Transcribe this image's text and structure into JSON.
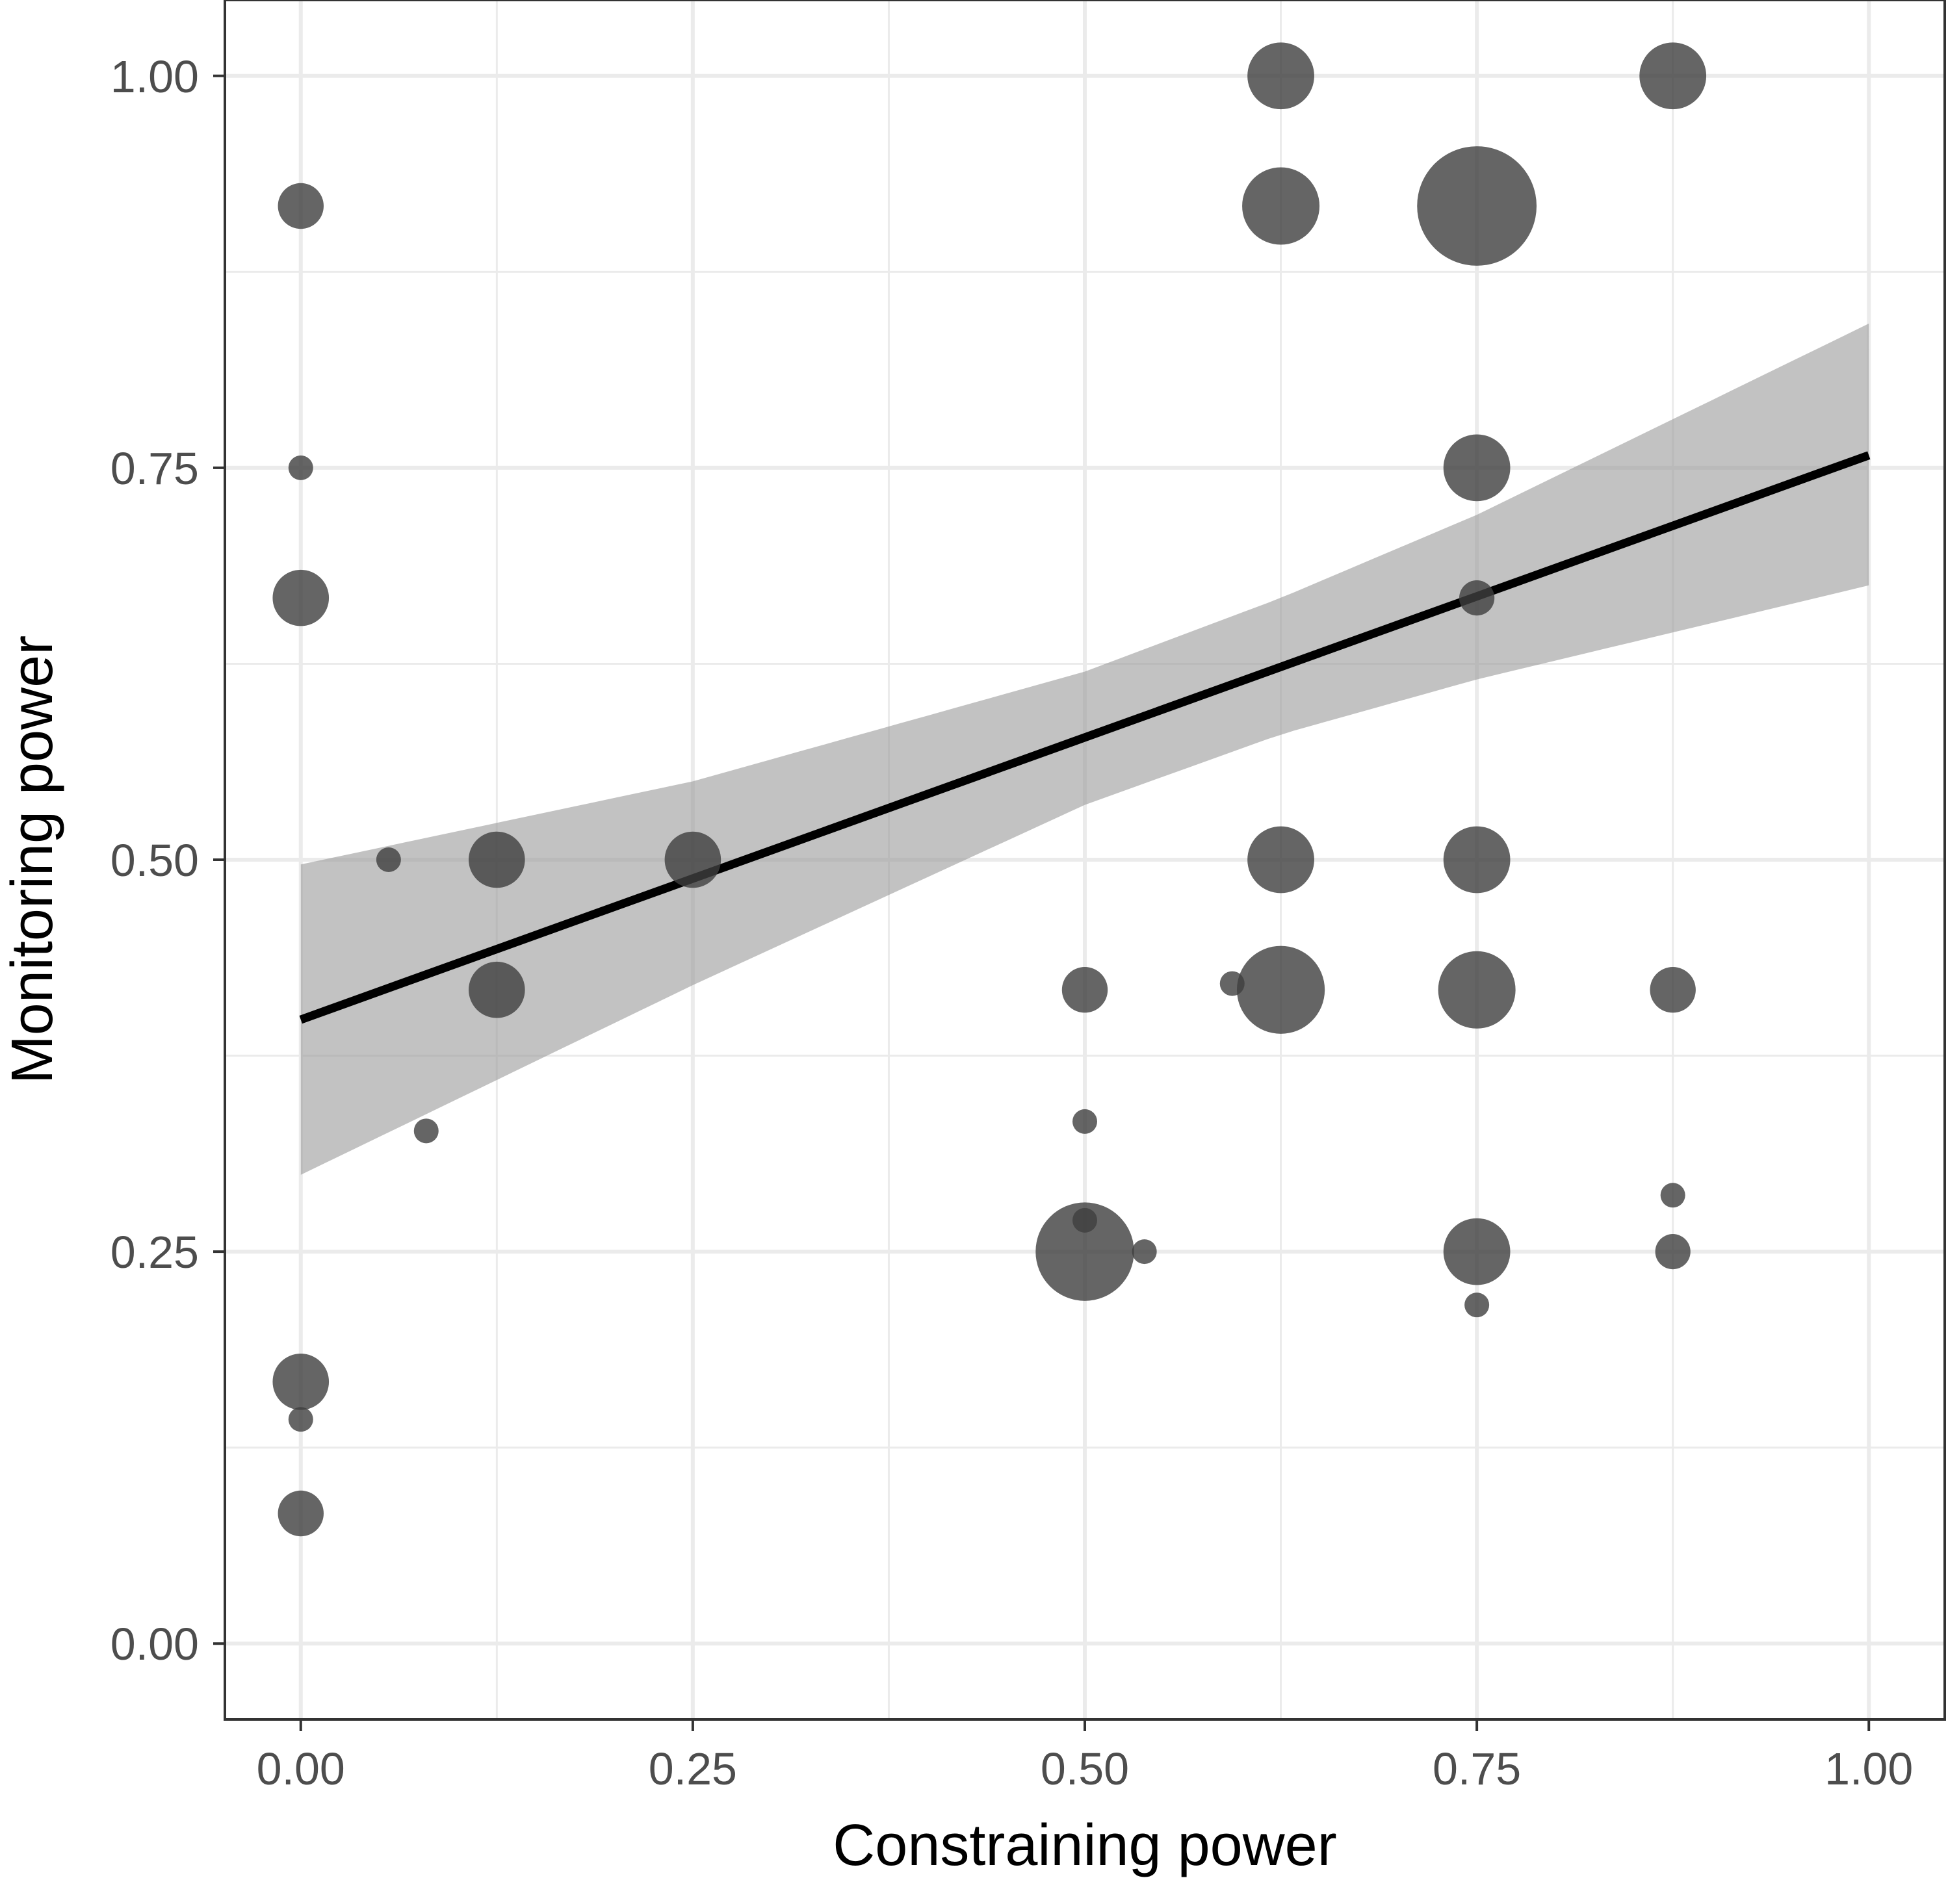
{
  "chart_data": {
    "type": "scatter",
    "title": "",
    "xlabel": "Constraining power",
    "ylabel": "Monitoring power",
    "xlim": [
      -0.0484,
      1.0484
    ],
    "ylim": [
      -0.0484,
      1.0484
    ],
    "grid": true,
    "major_ticks": [
      0,
      0.25,
      0.5,
      0.75,
      1.0
    ],
    "minor_ticks": [
      0.125,
      0.375,
      0.625,
      0.875
    ],
    "x_tick_labels": [
      "0.00",
      "0.25",
      "0.50",
      "0.75",
      "1.00"
    ],
    "y_tick_labels": [
      "0.00",
      "0.25",
      "0.50",
      "0.75",
      "1.00"
    ],
    "point_color": "#3f3f3f",
    "point_opacity": 0.8,
    "fit_line_color": "#000000",
    "confidence_band_color": "#999999",
    "points": [
      {
        "x": 0.0,
        "y": 0.917,
        "size": 3
      },
      {
        "x": 0.0,
        "y": 0.75,
        "size": 1
      },
      {
        "x": 0.0,
        "y": 0.667,
        "size": 4
      },
      {
        "x": 0.0,
        "y": 0.167,
        "size": 4
      },
      {
        "x": 0.0,
        "y": 0.143,
        "size": 1
      },
      {
        "x": 0.0,
        "y": 0.083,
        "size": 3
      },
      {
        "x": 0.056,
        "y": 0.5,
        "size": 1
      },
      {
        "x": 0.08,
        "y": 0.327,
        "size": 1
      },
      {
        "x": 0.125,
        "y": 0.5,
        "size": 4
      },
      {
        "x": 0.125,
        "y": 0.417,
        "size": 4
      },
      {
        "x": 0.25,
        "y": 0.5,
        "size": 4
      },
      {
        "x": 0.5,
        "y": 0.417,
        "size": 3
      },
      {
        "x": 0.5,
        "y": 0.333,
        "size": 1
      },
      {
        "x": 0.5,
        "y": 0.25,
        "size": 8
      },
      {
        "x": 0.5,
        "y": 0.27,
        "size": 1
      },
      {
        "x": 0.538,
        "y": 0.25,
        "size": 1
      },
      {
        "x": 0.594,
        "y": 0.421,
        "size": 1
      },
      {
        "x": 0.625,
        "y": 1.0,
        "size": 5
      },
      {
        "x": 0.625,
        "y": 0.917,
        "size": 6
      },
      {
        "x": 0.625,
        "y": 0.5,
        "size": 5
      },
      {
        "x": 0.625,
        "y": 0.417,
        "size": 7
      },
      {
        "x": 0.75,
        "y": 0.917,
        "size": 10
      },
      {
        "x": 0.75,
        "y": 0.75,
        "size": 5
      },
      {
        "x": 0.75,
        "y": 0.667,
        "size": 2
      },
      {
        "x": 0.75,
        "y": 0.5,
        "size": 5
      },
      {
        "x": 0.75,
        "y": 0.417,
        "size": 6
      },
      {
        "x": 0.75,
        "y": 0.25,
        "size": 5
      },
      {
        "x": 0.75,
        "y": 0.216,
        "size": 1
      },
      {
        "x": 0.875,
        "y": 1.0,
        "size": 5
      },
      {
        "x": 0.875,
        "y": 0.417,
        "size": 3
      },
      {
        "x": 0.875,
        "y": 0.286,
        "size": 1
      },
      {
        "x": 0.875,
        "y": 0.25,
        "size": 2
      }
    ],
    "fit_line": {
      "x": [
        0.0,
        1.0
      ],
      "y": [
        0.398,
        0.758
      ]
    },
    "confidence_band": {
      "x": [
        0.0,
        0.25,
        0.5,
        0.625,
        0.75,
        1.0
      ],
      "upper": [
        0.497,
        0.55,
        0.62,
        0.667,
        0.72,
        0.842
      ],
      "lower": [
        0.299,
        0.42,
        0.535,
        0.58,
        0.615,
        0.675
      ]
    }
  }
}
